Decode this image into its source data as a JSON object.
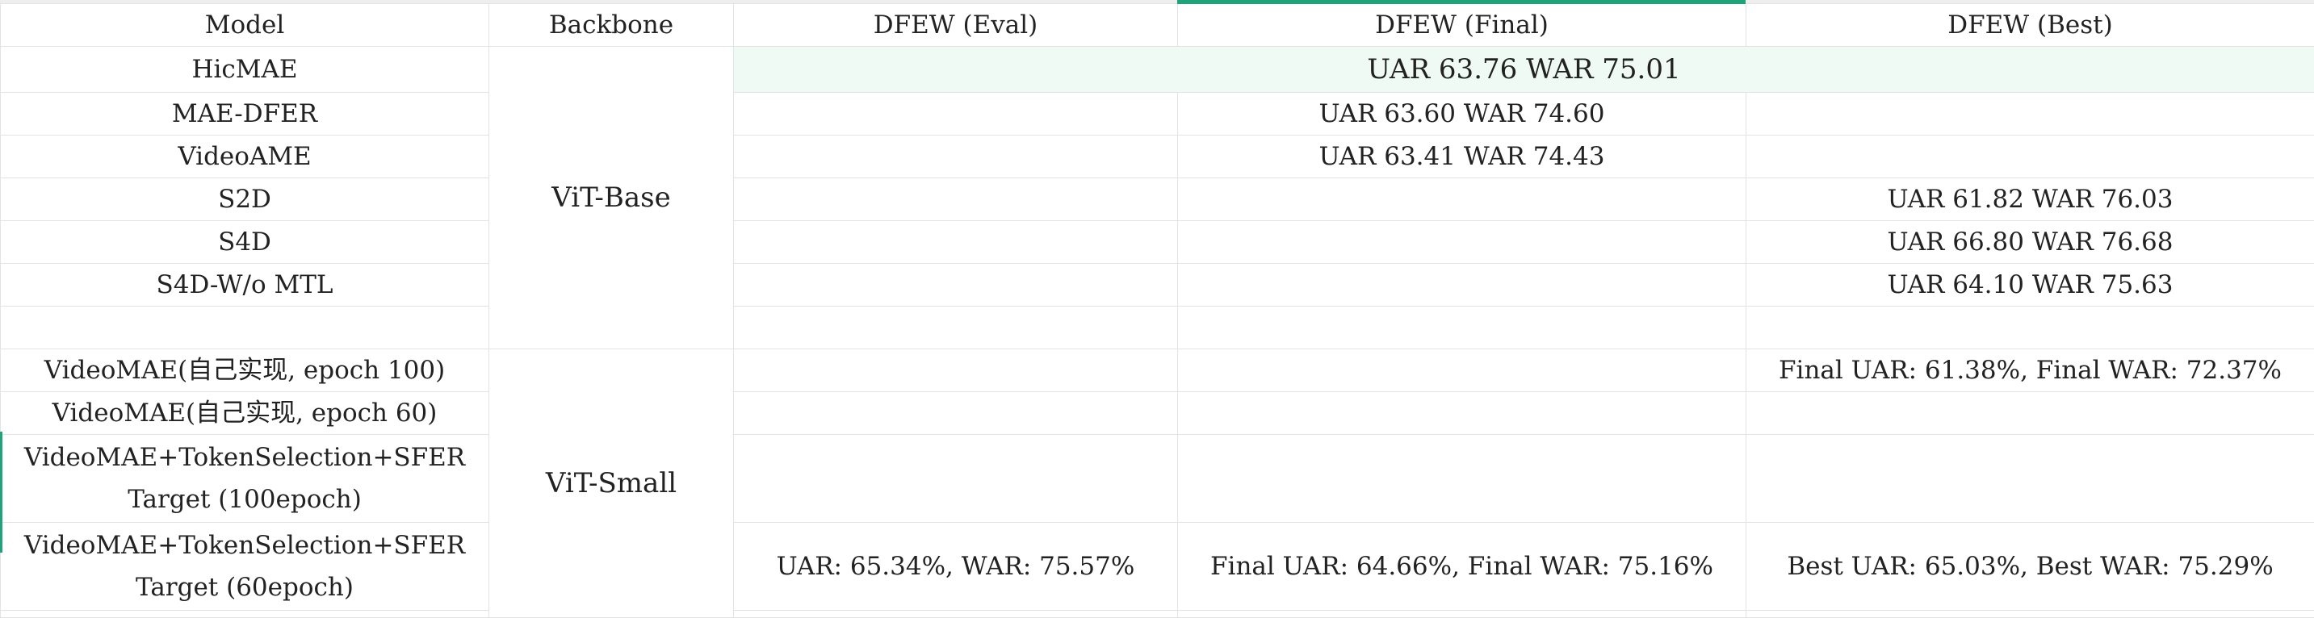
{
  "headers": [
    "Model",
    "Backbone",
    "DFEW (Eval)",
    "DFEW (Final)",
    "DFEW (Best)"
  ],
  "backbones": {
    "base": "ViT-Base",
    "small": "ViT-Small"
  },
  "rows": [
    {
      "model": "HicMAE",
      "merged": "UAR 63.76 WAR 75.01"
    },
    {
      "model": "MAE-DFER",
      "eval": "",
      "final": "UAR 63.60 WAR 74.60",
      "best": ""
    },
    {
      "model": "VideoAME",
      "eval": "",
      "final": "UAR 63.41 WAR 74.43",
      "best": ""
    },
    {
      "model": "S2D",
      "eval": "",
      "final": "",
      "best": "UAR 61.82 WAR 76.03"
    },
    {
      "model": "S4D",
      "eval": "",
      "final": "",
      "best": "UAR 66.80 WAR 76.68"
    },
    {
      "model": "S4D-W/o MTL",
      "eval": "",
      "final": "",
      "best": "UAR 64.10 WAR 75.63"
    },
    {
      "model": "",
      "eval": "",
      "final": "",
      "best": ""
    },
    {
      "model": "VideoMAE(自己实现, epoch 100)",
      "eval": "",
      "final": "",
      "best": "Final UAR: 61.38%, Final WAR: 72.37%"
    },
    {
      "model": "VideoMAE(自己实现, epoch 60)",
      "eval": "",
      "final": "",
      "best": ""
    },
    {
      "model": "VideoMAE+TokenSelection+SFER Target (100epoch)",
      "eval": "",
      "final": "",
      "best": ""
    },
    {
      "model": "VideoMAE+TokenSelection+SFER Target (60epoch)",
      "eval": "UAR: 65.34%,  WAR: 75.57%",
      "final": "Final UAR: 64.66%, Final WAR: 75.16%",
      "best": "Best UAR: 65.03%, Best WAR: 75.29%"
    }
  ]
}
